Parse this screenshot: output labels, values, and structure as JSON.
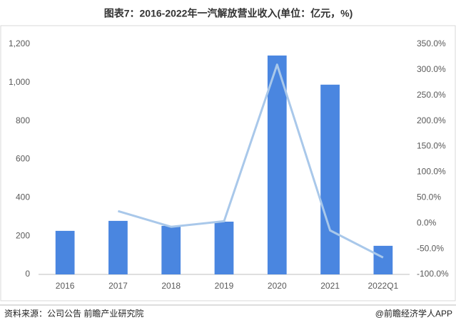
{
  "chart_data": {
    "type": "bar",
    "title": "图表7：2016-2022年一汽解放营业收入(单位：亿元，%)",
    "source": "资料来源：公司公告 前瞻产业研究院",
    "credit": "@前瞻经济学人APP",
    "categories": [
      "2016",
      "2017",
      "2018",
      "2019",
      "2020",
      "2021",
      "2022Q1"
    ],
    "series": [
      {
        "type": "bar",
        "color": "#4a86e0",
        "values": [
          227,
          279,
          253,
          275,
          1141,
          989,
          149
        ]
      },
      {
        "type": "line",
        "axis": "y2",
        "color": "#a9c8ea",
        "values": [
          null,
          23.7,
          -7,
          4,
          310,
          -14,
          -67
        ]
      }
    ],
    "ylim": [
      0,
      1200
    ],
    "yticks": [
      0,
      200,
      400,
      600,
      800,
      {
        "value": 1000,
        "label": "1,000"
      },
      {
        "value": 1200,
        "label": "1,200"
      }
    ],
    "y2lim": [
      -100,
      350
    ],
    "y2ticks": [
      {
        "value": -100,
        "label": "-100.0%"
      },
      {
        "value": -50,
        "label": "-50.0%"
      },
      {
        "value": 0,
        "label": "0.0%"
      },
      {
        "value": 50,
        "label": "50.0%"
      },
      {
        "value": 100,
        "label": "100.0%"
      },
      {
        "value": 150,
        "label": "150.0%"
      },
      {
        "value": 200,
        "label": "200.0%"
      },
      {
        "value": 250,
        "label": "250.0%"
      },
      {
        "value": 300,
        "label": "300.0%"
      },
      {
        "value": 350,
        "label": "350.0%"
      }
    ]
  }
}
